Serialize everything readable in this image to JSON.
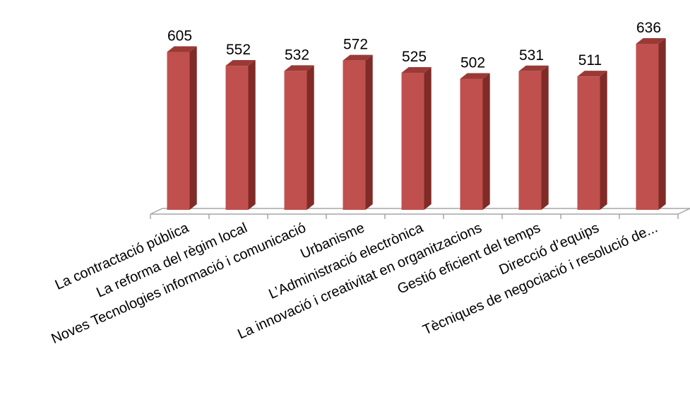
{
  "chart_data": {
    "type": "bar",
    "style": "3d-column",
    "categories": [
      "La contractació pública",
      "La reforma del règim local",
      "Noves Tecnologies informació i comunicació",
      "Urbanisme",
      "L’Administració electrònica",
      "La innovació i creativitat en organitzacions",
      "Gestió eficient del temps",
      "Direcció d’equips",
      "Tècniques de negociació i resolució de..."
    ],
    "values": [
      605,
      552,
      532,
      572,
      525,
      502,
      531,
      511,
      636
    ],
    "value_labels": [
      "605",
      "552",
      "532",
      "572",
      "525",
      "502",
      "531",
      "511",
      "636"
    ],
    "title": "",
    "xlabel": "",
    "ylabel": "",
    "ylim": [
      0,
      636
    ],
    "grid": false,
    "legend": "none",
    "colors": {
      "bar_front": "#c0504d",
      "bar_side": "#7f2b28",
      "bar_top": "#9a3a36",
      "floor_line": "#a6a6a6"
    }
  }
}
